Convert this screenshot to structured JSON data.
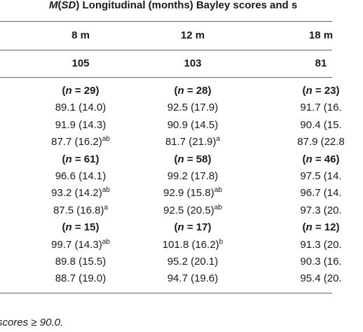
{
  "header": {
    "title_italic": "M",
    "title_paren_open": "(",
    "title_italic2": "SD",
    "title_rest": ") Longitudinal (months) Bayley scores and s"
  },
  "columns": [
    "8 m",
    "12 m",
    "18 m"
  ],
  "totals": [
    "105",
    "103",
    "81"
  ],
  "groups": [
    {
      "n": [
        "29",
        "28",
        "23"
      ],
      "rows": [
        [
          {
            "v": "89.1 (14.0)",
            "sup": ""
          },
          {
            "v": "92.5 (17.9)",
            "sup": ""
          },
          {
            "v": "91.7 (16.",
            "sup": ""
          }
        ],
        [
          {
            "v": "91.9 (14.3)",
            "sup": ""
          },
          {
            "v": "90.9 (14.5)",
            "sup": ""
          },
          {
            "v": "90.4 (15.",
            "sup": ""
          }
        ],
        [
          {
            "v": "87.7 (16.2)",
            "sup": "ab"
          },
          {
            "v": "81.7 (21.9)",
            "sup": "a"
          },
          {
            "v": "87.9 (22.8",
            "sup": ""
          }
        ]
      ]
    },
    {
      "n": [
        "61",
        "58",
        "46"
      ],
      "rows": [
        [
          {
            "v": "96.6 (14.1)",
            "sup": ""
          },
          {
            "v": "99.2 (17.8)",
            "sup": ""
          },
          {
            "v": "97.5 (14.",
            "sup": ""
          }
        ],
        [
          {
            "v": "93.2 (14.2)",
            "sup": "ab"
          },
          {
            "v": "92.9 (15.8)",
            "sup": "ab"
          },
          {
            "v": "96.7 (14.",
            "sup": ""
          }
        ],
        [
          {
            "v": "87.5 (16.8)",
            "sup": "a"
          },
          {
            "v": "92.5 (20.5)",
            "sup": "ab"
          },
          {
            "v": "97.3 (20.",
            "sup": ""
          }
        ]
      ]
    },
    {
      "n": [
        "15",
        "17",
        "12"
      ],
      "rows": [
        [
          {
            "v": "99.7 (14.3)",
            "sup": "ab"
          },
          {
            "v": "101.8 (16.2)",
            "sup": "b"
          },
          {
            "v": "91.3 (20.",
            "sup": ""
          }
        ],
        [
          {
            "v": "89.8 (15.5)",
            "sup": ""
          },
          {
            "v": "95.2 (20.1)",
            "sup": ""
          },
          {
            "v": "90.3 (16.",
            "sup": ""
          }
        ],
        [
          {
            "v": "88.7 (19.0)",
            "sup": ""
          },
          {
            "v": "94.7 (19.6)",
            "sup": ""
          },
          {
            "v": "95.4 (20.",
            "sup": ""
          }
        ]
      ]
    }
  ],
  "n_prefix": "(",
  "n_label": "n",
  "n_eq": " = ",
  "n_suffix": ")",
  "footnote": "scores ≥ 90.0."
}
